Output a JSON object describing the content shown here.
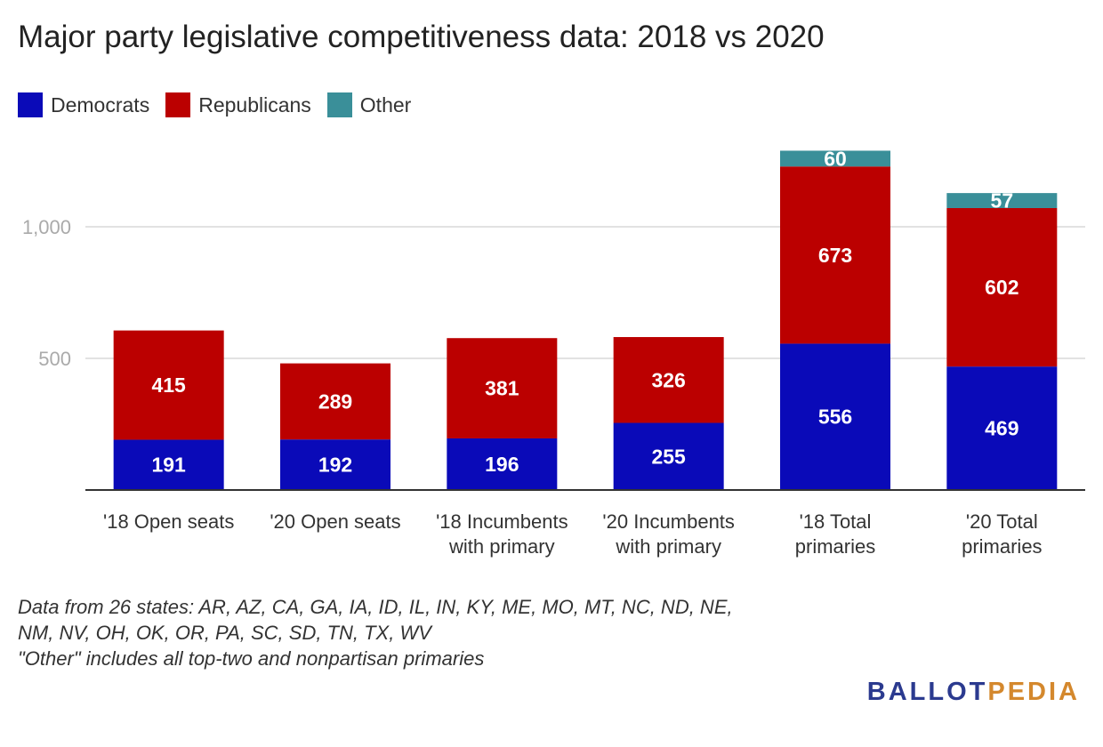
{
  "title": "Major party legislative competitiveness data: 2018 vs 2020",
  "legend": [
    {
      "label": "Democrats",
      "color": "#0a0ab8"
    },
    {
      "label": "Republicans",
      "color": "#bb0000"
    },
    {
      "label": "Other",
      "color": "#3a8f99"
    }
  ],
  "chart_data": {
    "type": "bar",
    "stacked": true,
    "categories": [
      [
        "'18 Open seats"
      ],
      [
        "'20 Open seats"
      ],
      [
        "'18 Incumbents",
        "with primary"
      ],
      [
        "'20 Incumbents",
        "with primary"
      ],
      [
        "'18 Total",
        "primaries"
      ],
      [
        "'20 Total",
        "primaries"
      ]
    ],
    "series": [
      {
        "name": "Democrats",
        "color": "#0a0ab8",
        "values": [
          191,
          192,
          196,
          255,
          556,
          469
        ]
      },
      {
        "name": "Republicans",
        "color": "#bb0000",
        "values": [
          415,
          289,
          381,
          326,
          673,
          602
        ]
      },
      {
        "name": "Other",
        "color": "#3a8f99",
        "values": [
          0,
          0,
          0,
          0,
          60,
          57
        ]
      }
    ],
    "yticks": [
      {
        "value": 500,
        "label": "500"
      },
      {
        "value": 1000,
        "label": "1,000"
      }
    ],
    "ylim": [
      0,
      1360
    ],
    "grid": true,
    "legend_position": "top-left"
  },
  "notes": [
    "Data from 26 states: AR, AZ, CA, GA, IA, ID, IL, IN, KY, ME, MO, MT, NC, ND, NE,",
    "NM, NV, OH, OK, OR, PA, SC, SD, TN, TX, WV",
    "\"Other\" includes all top-two and nonpartisan primaries"
  ],
  "logo": {
    "part1": "BALLOT",
    "part2": "PEDIA"
  }
}
